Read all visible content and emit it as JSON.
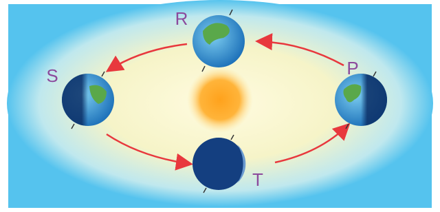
{
  "nodes": [
    {
      "label": "R"
    },
    {
      "label": "S"
    },
    {
      "label": "P"
    },
    {
      "label": "T"
    }
  ]
}
